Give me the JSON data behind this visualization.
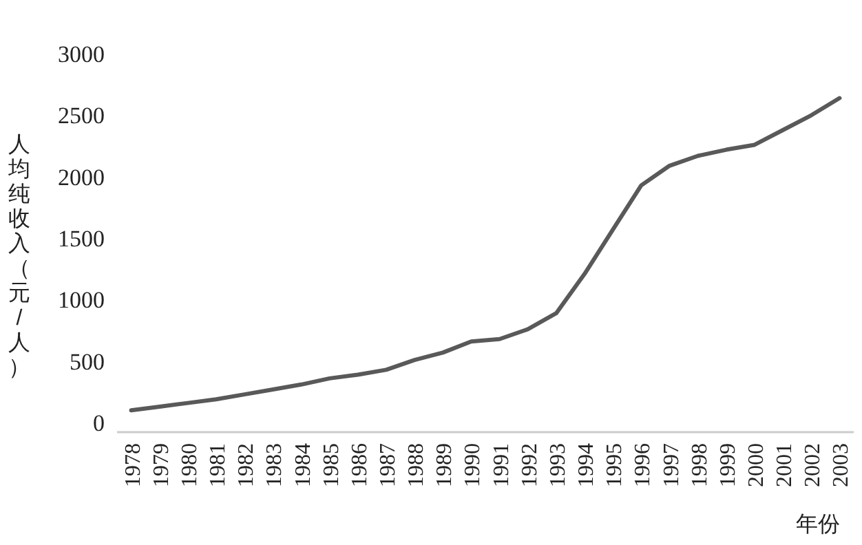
{
  "chart_data": {
    "type": "line",
    "xlabel": "年份",
    "ylabel": "人均纯收入（元/人）",
    "categories": [
      "1978",
      "1979",
      "1980",
      "1981",
      "1982",
      "1983",
      "1984",
      "1985",
      "1986",
      "1987",
      "1988",
      "1989",
      "1990",
      "1991",
      "1992",
      "1993",
      "1994",
      "1995",
      "1996",
      "1997",
      "1998",
      "1999",
      "2000",
      "2001",
      "2002",
      "2003"
    ],
    "series": [
      {
        "color": "#595959",
        "values": [
          110,
          140,
          170,
          200,
          240,
          280,
          320,
          370,
          400,
          440,
          520,
          580,
          670,
          690,
          770,
          900,
          1220,
          1580,
          1940,
          2100,
          2180,
          2230,
          2270,
          2390,
          2510,
          2650
        ]
      }
    ],
    "ylim": [
      0,
      3000
    ],
    "yticks": [
      0,
      500,
      1000,
      1500,
      2000,
      2500,
      3000
    ],
    "grid": false,
    "marker": "none",
    "line_style": "solid"
  }
}
